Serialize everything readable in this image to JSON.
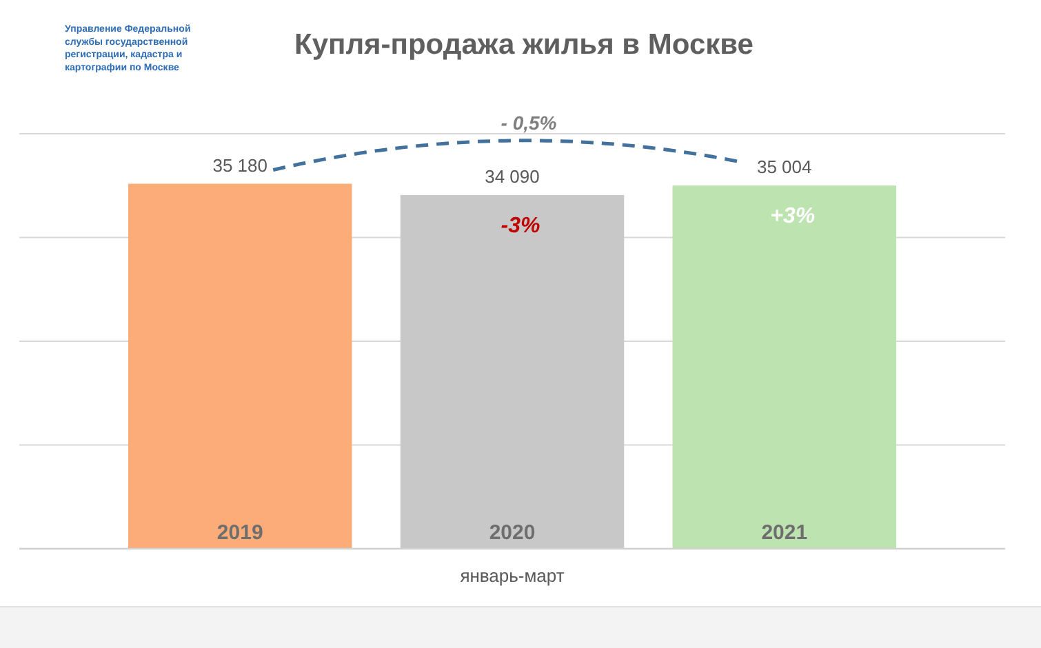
{
  "chart_data": {
    "type": "bar",
    "title": "Купля-продажа жилья в Москве",
    "xlabel": "январь-март",
    "categories": [
      "2019",
      "2020",
      "2021"
    ],
    "values": [
      35180,
      34090,
      35004
    ],
    "colors": [
      "#fcac78",
      "#c8c8c8",
      "#bde3b1"
    ],
    "value_labels": [
      "35 180",
      "34 090",
      "35 004"
    ],
    "ylim": [
      0,
      40000
    ],
    "yticks": [
      {
        "value": 0,
        "label": null
      },
      {
        "value": 10000,
        "label": null
      },
      {
        "value": 20000,
        "label": null
      },
      {
        "value": 30000,
        "label": null
      },
      {
        "value": 40000,
        "label": null
      }
    ],
    "grid": "y",
    "tick_labels": "x",
    "annotations": [
      "Управление Федеральной службы государственной регистрации, кадастра и картографии по Москве",
      "- 0,5%",
      "-3%",
      "+3%"
    ]
  }
}
